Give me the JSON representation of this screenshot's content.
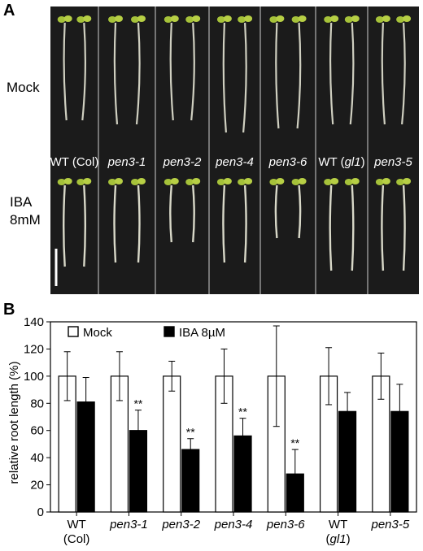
{
  "panel_a": {
    "letter": "A",
    "row_labels": [
      "Mock",
      "IBA",
      "8mM"
    ],
    "genotypes": [
      {
        "main": "WT (Col)",
        "italic": false
      },
      {
        "main": "pen3-1",
        "italic": true
      },
      {
        "main": "pen3-2",
        "italic": true
      },
      {
        "main": "pen3-4",
        "italic": true
      },
      {
        "main": "pen3-6",
        "italic": true
      },
      {
        "main": "WT (",
        "ital": "gl1",
        "close": ")",
        "italic": false
      },
      {
        "main": "pen3-5",
        "italic": true
      }
    ]
  },
  "panel_b": {
    "letter": "B"
  },
  "chart_data": {
    "type": "bar",
    "ylabel": "relative root length (%)",
    "ylim": [
      0,
      140
    ],
    "yticks": [
      "0",
      "20",
      "40",
      "60",
      "80",
      "100",
      "120",
      "140"
    ],
    "categories": [
      {
        "line1": "WT",
        "line2": "(Col)",
        "italic": false
      },
      {
        "line1": "pen3-1",
        "line2": "",
        "italic": true
      },
      {
        "line1": "pen3-2",
        "line2": "",
        "italic": true
      },
      {
        "line1": "pen3-4",
        "line2": "",
        "italic": true
      },
      {
        "line1": "pen3-6",
        "line2": "",
        "italic": true
      },
      {
        "line1": "WT",
        "line2": "(gl1)",
        "italic": false
      },
      {
        "line1": "pen3-5",
        "line2": "",
        "italic": true
      }
    ],
    "series": [
      {
        "name": "Mock",
        "color": "#ffffff",
        "values": [
          100,
          100,
          100,
          100,
          100,
          100,
          100
        ],
        "err": [
          18,
          18,
          11,
          20,
          37,
          21,
          17
        ]
      },
      {
        "name": "IBA 8µM",
        "color": "#000000",
        "values": [
          81,
          60,
          46,
          56,
          28,
          74,
          74
        ],
        "err": [
          18,
          15,
          8,
          13,
          18,
          14,
          20
        ]
      }
    ],
    "significance": [
      "",
      "**",
      "**",
      "**",
      "**",
      "",
      ""
    ],
    "legend_position": "top-left"
  }
}
